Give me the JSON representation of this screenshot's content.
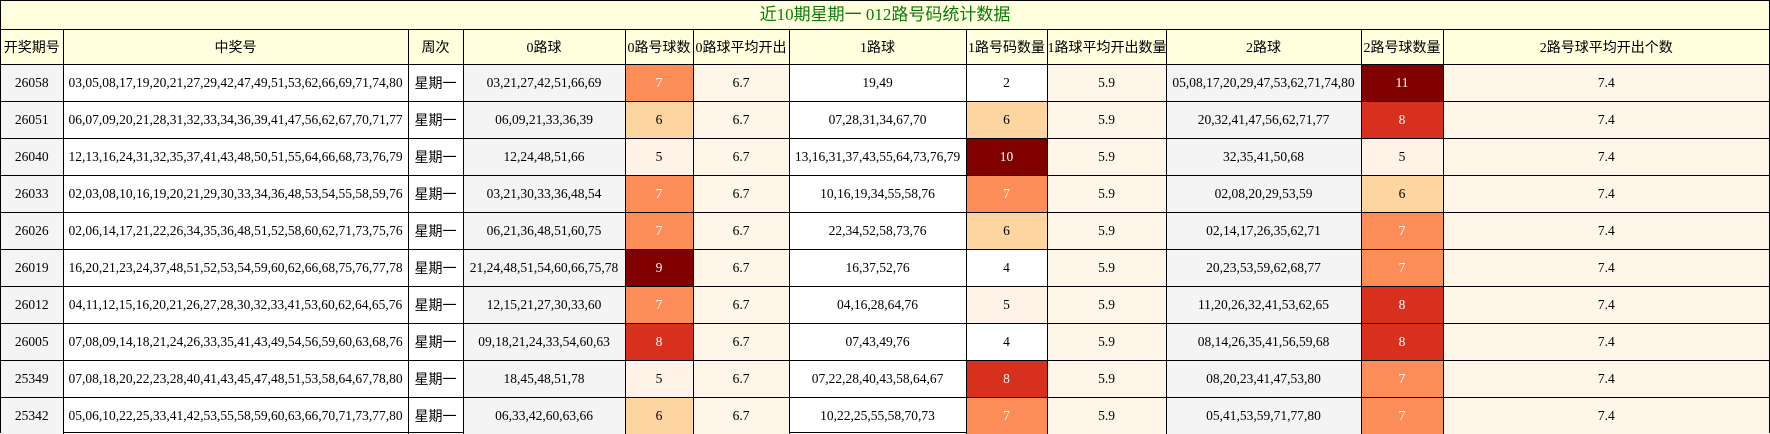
{
  "title": "近10期星期一 012路号码统计数据",
  "headers": [
    "开奖期号",
    "中奖号",
    "周次",
    "0路球",
    "0路号球数",
    "0路球平均开出",
    "1路球",
    "1路号码数量",
    "1路球平均开出数量",
    "2路球",
    "2路号球数量",
    "2路号球平均开出个数"
  ],
  "colors": {
    "header_bg": "#ffffdd",
    "title_text": "#0a7a0a",
    "heat": {
      "5": "#fff2e6",
      "6": "#fdd5a0",
      "7": "#fc8d59",
      "8": "#d7301f",
      "9": "#800000",
      "10": "#800000",
      "11": "#800000"
    }
  },
  "rows": [
    {
      "issue": "26058",
      "numbers": "03,05,08,17,19,20,21,27,29,42,47,49,51,53,62,66,69,71,74,80",
      "week": "星期一",
      "r0": "03,21,27,42,51,66,69",
      "r0_count": "7",
      "r0_avg": "6.7",
      "r1": "19,49",
      "r1_count": "2",
      "r1_avg": "5.9",
      "r2": "05,08,17,20,29,47,53,62,71,74,80",
      "r2_count": "11",
      "r2_avg": "7.4"
    },
    {
      "issue": "26051",
      "numbers": "06,07,09,20,21,28,31,32,33,34,36,39,41,47,56,62,67,70,71,77",
      "week": "星期一",
      "r0": "06,09,21,33,36,39",
      "r0_count": "6",
      "r0_avg": "6.7",
      "r1": "07,28,31,34,67,70",
      "r1_count": "6",
      "r1_avg": "5.9",
      "r2": "20,32,41,47,56,62,71,77",
      "r2_count": "8",
      "r2_avg": "7.4"
    },
    {
      "issue": "26040",
      "numbers": "12,13,16,24,31,32,35,37,41,43,48,50,51,55,64,66,68,73,76,79",
      "week": "星期一",
      "r0": "12,24,48,51,66",
      "r0_count": "5",
      "r0_avg": "6.7",
      "r1": "13,16,31,37,43,55,64,73,76,79",
      "r1_count": "10",
      "r1_avg": "5.9",
      "r2": "32,35,41,50,68",
      "r2_count": "5",
      "r2_avg": "7.4"
    },
    {
      "issue": "26033",
      "numbers": "02,03,08,10,16,19,20,21,29,30,33,34,36,48,53,54,55,58,59,76",
      "week": "星期一",
      "r0": "03,21,30,33,36,48,54",
      "r0_count": "7",
      "r0_avg": "6.7",
      "r1": "10,16,19,34,55,58,76",
      "r1_count": "7",
      "r1_avg": "5.9",
      "r2": "02,08,20,29,53,59",
      "r2_count": "6",
      "r2_avg": "7.4"
    },
    {
      "issue": "26026",
      "numbers": "02,06,14,17,21,22,26,34,35,36,48,51,52,58,60,62,71,73,75,76",
      "week": "星期一",
      "r0": "06,21,36,48,51,60,75",
      "r0_count": "7",
      "r0_avg": "6.7",
      "r1": "22,34,52,58,73,76",
      "r1_count": "6",
      "r1_avg": "5.9",
      "r2": "02,14,17,26,35,62,71",
      "r2_count": "7",
      "r2_avg": "7.4"
    },
    {
      "issue": "26019",
      "numbers": "16,20,21,23,24,37,48,51,52,53,54,59,60,62,66,68,75,76,77,78",
      "week": "星期一",
      "r0": "21,24,48,51,54,60,66,75,78",
      "r0_count": "9",
      "r0_avg": "6.7",
      "r1": "16,37,52,76",
      "r1_count": "4",
      "r1_avg": "5.9",
      "r2": "20,23,53,59,62,68,77",
      "r2_count": "7",
      "r2_avg": "7.4"
    },
    {
      "issue": "26012",
      "numbers": "04,11,12,15,16,20,21,26,27,28,30,32,33,41,53,60,62,64,65,76",
      "week": "星期一",
      "r0": "12,15,21,27,30,33,60",
      "r0_count": "7",
      "r0_avg": "6.7",
      "r1": "04,16,28,64,76",
      "r1_count": "5",
      "r1_avg": "5.9",
      "r2": "11,20,26,32,41,53,62,65",
      "r2_count": "8",
      "r2_avg": "7.4"
    },
    {
      "issue": "26005",
      "numbers": "07,08,09,14,18,21,24,26,33,35,41,43,49,54,56,59,60,63,68,76",
      "week": "星期一",
      "r0": "09,18,21,24,33,54,60,63",
      "r0_count": "8",
      "r0_avg": "6.7",
      "r1": "07,43,49,76",
      "r1_count": "4",
      "r1_avg": "5.9",
      "r2": "08,14,26,35,41,56,59,68",
      "r2_count": "8",
      "r2_avg": "7.4"
    },
    {
      "issue": "25349",
      "numbers": "07,08,18,20,22,23,28,40,41,43,45,47,48,51,53,58,64,67,78,80",
      "week": "星期一",
      "r0": "18,45,48,51,78",
      "r0_count": "5",
      "r0_avg": "6.7",
      "r1": "07,22,28,40,43,58,64,67",
      "r1_count": "8",
      "r1_avg": "5.9",
      "r2": "08,20,23,41,47,53,80",
      "r2_count": "7",
      "r2_avg": "7.4"
    },
    {
      "issue": "25342",
      "numbers": "05,06,10,22,25,33,41,42,53,55,58,59,60,63,66,70,71,73,77,80",
      "week": "星期一",
      "r0": "06,33,42,60,63,66",
      "r0_count": "6",
      "r0_avg": "6.7",
      "r1": "10,22,25,55,58,70,73",
      "r1_count": "7",
      "r1_avg": "5.9",
      "r2": "05,41,53,59,71,77,80",
      "r2_count": "7",
      "r2_avg": "7.4"
    }
  ]
}
